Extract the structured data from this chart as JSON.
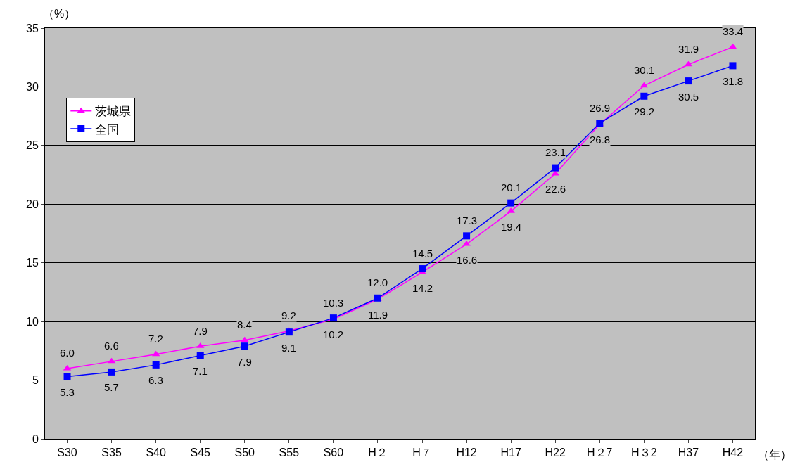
{
  "chart_data": {
    "type": "line",
    "xlabel": "（年）",
    "ylabel": "（%）",
    "categories": [
      "S30",
      "S35",
      "S40",
      "S45",
      "S50",
      "S55",
      "S60",
      "H２",
      "H７",
      "H12",
      "H17",
      "H22",
      "H２7",
      "H３2",
      "H37",
      "H42"
    ],
    "series": [
      {
        "name": "茨城県",
        "color": "#ff00ff",
        "marker": "triangle",
        "values": [
          6.0,
          6.6,
          7.2,
          7.9,
          8.4,
          9.2,
          10.2,
          11.9,
          14.2,
          16.6,
          19.4,
          22.6,
          26.8,
          30.1,
          31.9,
          33.4
        ],
        "value_labels": [
          "6.0",
          "6.6",
          "7.2",
          "7.9",
          "8.4",
          "9.2",
          "10.2",
          "11.9",
          "14.2",
          "16.6",
          "19.4",
          "22.6",
          "26.8",
          "30.1",
          "31.9",
          "33.4"
        ]
      },
      {
        "name": "全国",
        "color": "#0000ff",
        "marker": "square",
        "values": [
          5.3,
          5.7,
          6.3,
          7.1,
          7.9,
          9.1,
          10.3,
          12.0,
          14.5,
          17.3,
          20.1,
          23.1,
          26.9,
          29.2,
          30.5,
          31.8
        ],
        "value_labels": [
          "5.3",
          "5.7",
          "6.3",
          "7.1",
          "7.9",
          "9.1",
          "10.3",
          "12.0",
          "14.5",
          "17.3",
          "20.1",
          "23.1",
          "26.9",
          "29.2",
          "30.5",
          "31.8"
        ]
      }
    ],
    "ylim": [
      0,
      35
    ],
    "yticks": [
      0,
      5,
      10,
      15,
      20,
      25,
      30,
      35
    ],
    "grid": "y",
    "legend": "top left",
    "line_style": "solid"
  }
}
